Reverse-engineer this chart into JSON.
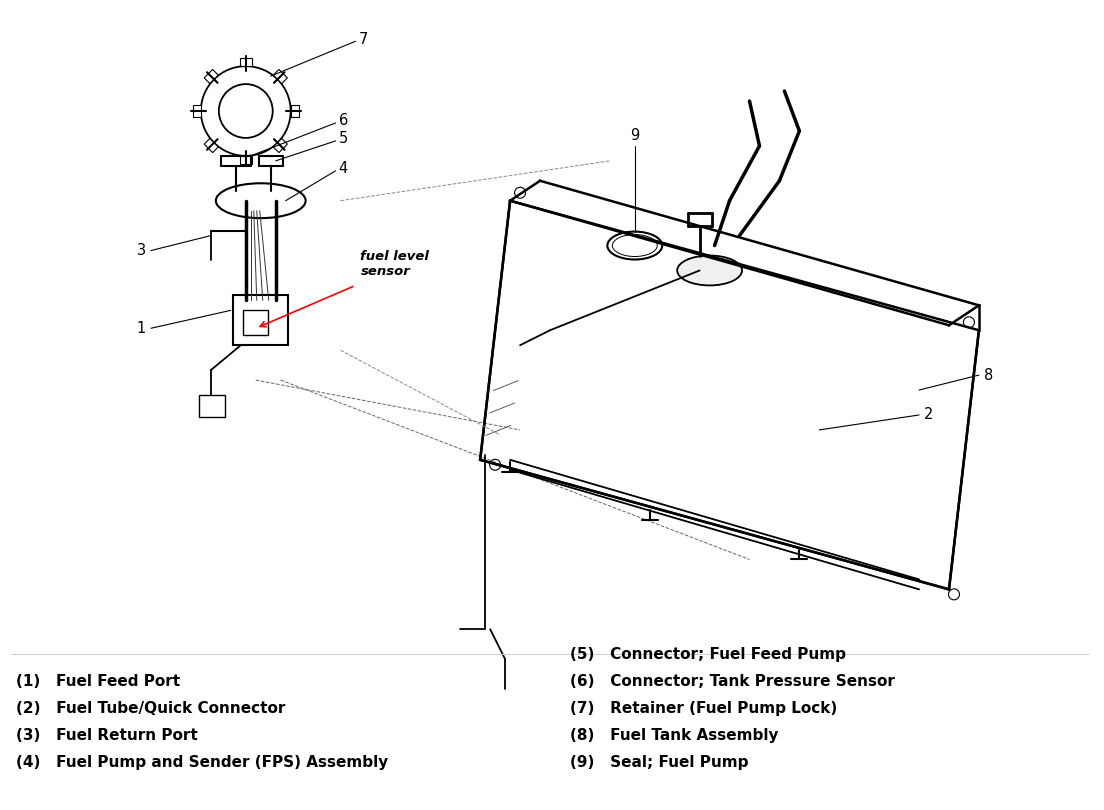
{
  "background_color": "#ffffff",
  "title": "",
  "figsize": [
    11.04,
    8.1
  ],
  "dpi": 100,
  "legend_left": [
    "(1)   Fuel Feed Port",
    "(2)   Fuel Tube/Quick Connector",
    "(3)   Fuel Return Port",
    "(4)   Fuel Pump and Sender (FPS) Assembly"
  ],
  "legend_right": [
    "(5)   Connector; Fuel Feed Pump",
    "(6)   Connector; Tank Pressure Sensor",
    "(7)   Retainer (Fuel Pump Lock)",
    "(8)   Fuel Tank Assembly",
    "(9)   Seal; Fuel Pump"
  ],
  "fuel_level_sensor_label": "fuel level\nsensor",
  "fuel_level_sensor_color": "#cc0000",
  "callout_line_color": "#000000",
  "diagram_line_color": "#000000",
  "legend_font_size": 11,
  "callout_font_size": 10.5
}
